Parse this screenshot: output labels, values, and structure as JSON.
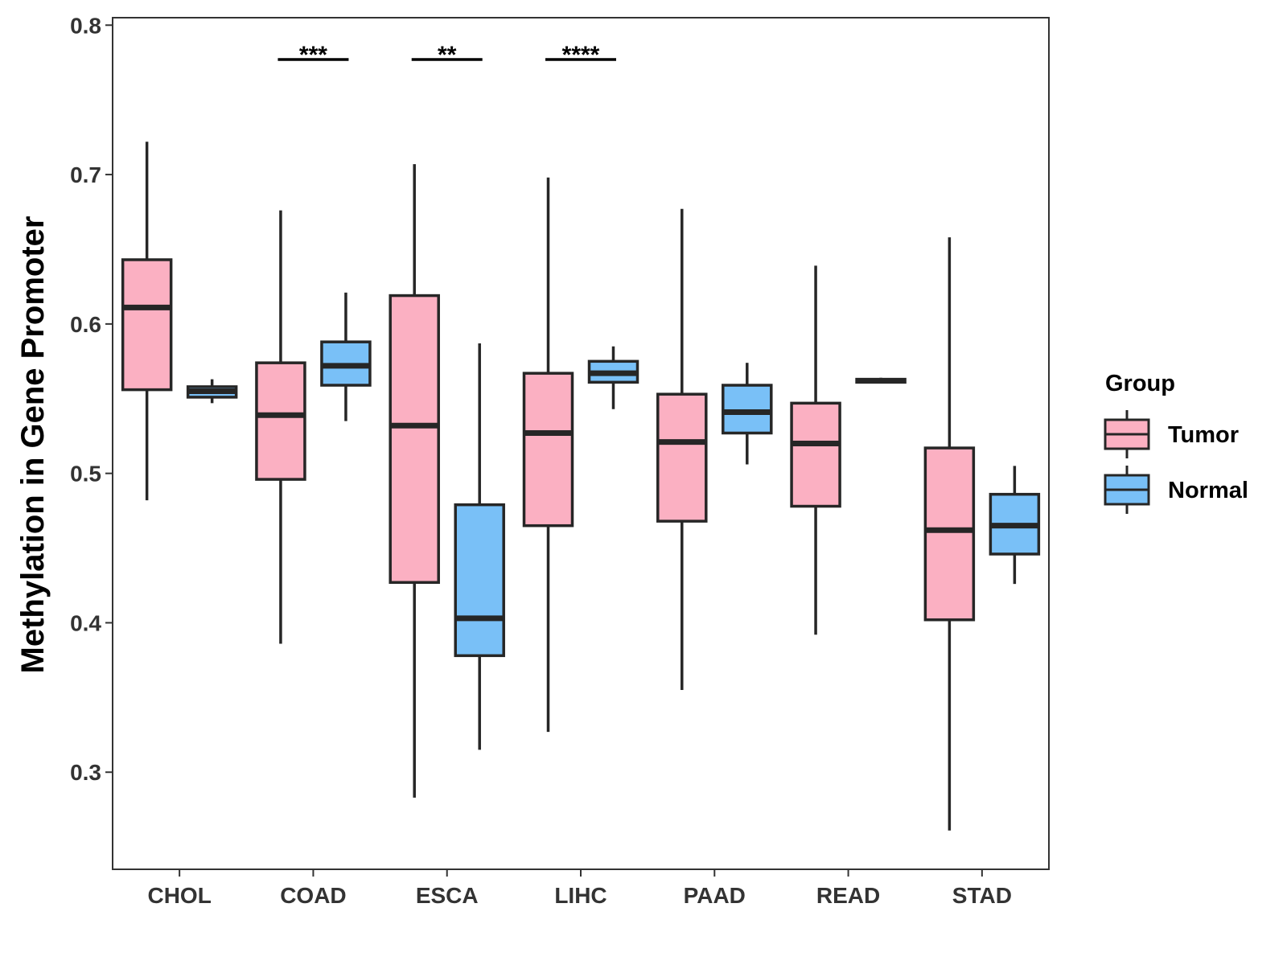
{
  "chart_data": {
    "type": "boxplot",
    "ylabel": "Methylation in Gene Promoter",
    "xlabel": "",
    "ylim": [
      0.235,
      0.805
    ],
    "yticks": [
      0.3,
      0.4,
      0.5,
      0.6,
      0.7,
      0.8
    ],
    "ytick_labels": [
      "0.3",
      "0.4",
      "0.5",
      "0.6",
      "0.7",
      "0.8"
    ],
    "categories": [
      "CHOL",
      "COAD",
      "ESCA",
      "LIHC",
      "PAAD",
      "READ",
      "STAD"
    ],
    "legend": {
      "title": "Group",
      "position": "right",
      "entries": [
        {
          "name": "Tumor",
          "color": "#FBB0C2"
        },
        {
          "name": "Normal",
          "color": "#79C0F7"
        }
      ]
    },
    "series": [
      {
        "name": "Tumor",
        "color": "#FBB0C2",
        "boxes": [
          {
            "category": "CHOL",
            "min": 0.482,
            "q1": 0.556,
            "median": 0.611,
            "q3": 0.643,
            "max": 0.722
          },
          {
            "category": "COAD",
            "min": 0.386,
            "q1": 0.496,
            "median": 0.539,
            "q3": 0.574,
            "max": 0.676
          },
          {
            "category": "ESCA",
            "min": 0.283,
            "q1": 0.427,
            "median": 0.532,
            "q3": 0.619,
            "max": 0.707
          },
          {
            "category": "LIHC",
            "min": 0.327,
            "q1": 0.465,
            "median": 0.527,
            "q3": 0.567,
            "max": 0.698
          },
          {
            "category": "PAAD",
            "min": 0.355,
            "q1": 0.468,
            "median": 0.521,
            "q3": 0.553,
            "max": 0.677
          },
          {
            "category": "READ",
            "min": 0.392,
            "q1": 0.478,
            "median": 0.52,
            "q3": 0.547,
            "max": 0.639
          },
          {
            "category": "STAD",
            "min": 0.261,
            "q1": 0.402,
            "median": 0.462,
            "q3": 0.517,
            "max": 0.658
          }
        ]
      },
      {
        "name": "Normal",
        "color": "#79C0F7",
        "boxes": [
          {
            "category": "CHOL",
            "min": 0.547,
            "q1": 0.551,
            "median": 0.555,
            "q3": 0.558,
            "max": 0.563
          },
          {
            "category": "COAD",
            "min": 0.535,
            "q1": 0.559,
            "median": 0.572,
            "q3": 0.588,
            "max": 0.621
          },
          {
            "category": "ESCA",
            "min": 0.315,
            "q1": 0.378,
            "median": 0.403,
            "q3": 0.479,
            "max": 0.587
          },
          {
            "category": "LIHC",
            "min": 0.543,
            "q1": 0.561,
            "median": 0.567,
            "q3": 0.575,
            "max": 0.585
          },
          {
            "category": "PAAD",
            "min": 0.506,
            "q1": 0.527,
            "median": 0.541,
            "q3": 0.559,
            "max": 0.574
          },
          {
            "category": "READ",
            "min": 0.561,
            "q1": 0.561,
            "median": 0.562,
            "q3": 0.563,
            "max": 0.564
          },
          {
            "category": "STAD",
            "min": 0.426,
            "q1": 0.446,
            "median": 0.465,
            "q3": 0.486,
            "max": 0.505
          }
        ]
      }
    ],
    "annotations": [
      {
        "category": "COAD",
        "label": "***",
        "y": 0.777
      },
      {
        "category": "ESCA",
        "label": "**",
        "y": 0.777
      },
      {
        "category": "LIHC",
        "label": "****",
        "y": 0.777
      }
    ]
  }
}
